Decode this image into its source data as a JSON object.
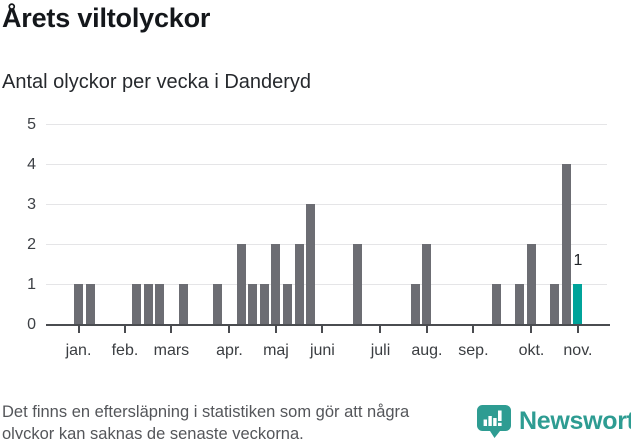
{
  "header": {
    "title": "Årets viltolyckor",
    "subtitle": "Antal olyckor per vecka i Danderyd"
  },
  "chart_data": {
    "type": "bar",
    "title": "Årets viltolyckor",
    "subtitle": "Antal olyckor per vecka i Danderyd",
    "x_unit": "vecka (week of year)",
    "ylabel": "",
    "xlabel": "",
    "ylim": [
      0,
      5
    ],
    "yticks": [
      0,
      1,
      2,
      3,
      4,
      5
    ],
    "grid": true,
    "legend_position": "none",
    "weeks": [
      1,
      2,
      3,
      4,
      5,
      6,
      7,
      8,
      9,
      10,
      11,
      12,
      13,
      14,
      15,
      16,
      17,
      18,
      19,
      20,
      21,
      22,
      23,
      24,
      25,
      26,
      27,
      28,
      29,
      30,
      31,
      32,
      33,
      34,
      35,
      36,
      37,
      38,
      39,
      40,
      41,
      42,
      43,
      44
    ],
    "values": [
      1,
      1,
      0,
      0,
      0,
      1,
      1,
      1,
      0,
      1,
      0,
      0,
      1,
      0,
      2,
      1,
      1,
      2,
      1,
      2,
      3,
      0,
      0,
      0,
      2,
      0,
      0,
      0,
      0,
      1,
      2,
      0,
      0,
      0,
      0,
      0,
      1,
      0,
      1,
      2,
      0,
      1,
      4,
      1
    ],
    "month_ticks": [
      {
        "label": "jan.",
        "week": 1
      },
      {
        "label": "feb.",
        "week": 5
      },
      {
        "label": "mars",
        "week": 9
      },
      {
        "label": "apr.",
        "week": 14
      },
      {
        "label": "maj",
        "week": 18
      },
      {
        "label": "juni",
        "week": 22
      },
      {
        "label": "juli",
        "week": 27
      },
      {
        "label": "aug.",
        "week": 31
      },
      {
        "label": "sep.",
        "week": 35
      },
      {
        "label": "okt.",
        "week": 40
      },
      {
        "label": "nov.",
        "week": 44
      }
    ],
    "highlight_week": 44,
    "annotation": {
      "label": "1",
      "week": 44
    },
    "bar_color": "#6c6d73",
    "highlight_color": "#00a39a",
    "gridline_color": "#e5e5e7",
    "axis_color": "#4a4c50"
  },
  "footer": {
    "note_line1": "Det finns en eftersläpning i statistiken som gör att några",
    "note_line2": "olyckor kan saknas de senaste veckorna.",
    "brand": "Newsworthy",
    "brand_color": "#2e9c92"
  }
}
